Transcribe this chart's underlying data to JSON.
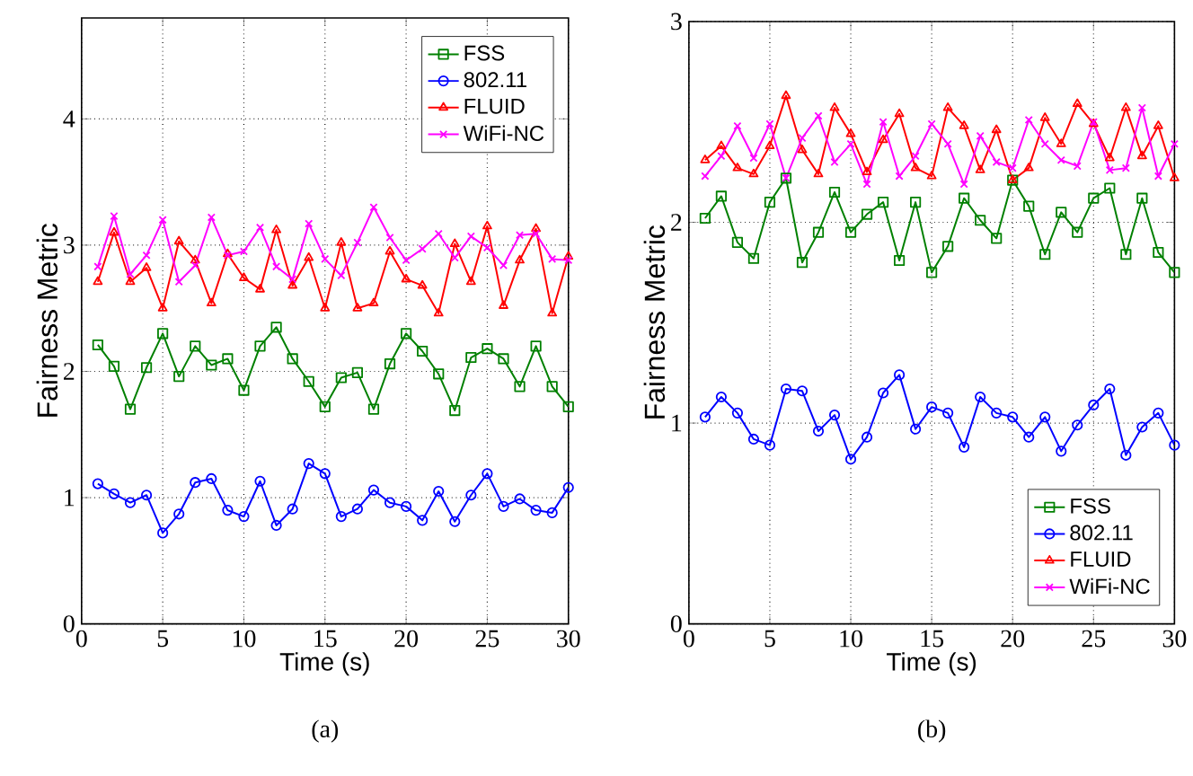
{
  "chart_data": [
    {
      "type": "line",
      "xlabel": "Time (s)",
      "ylabel": "Fairness Metric",
      "annotations": [
        "(a)"
      ],
      "x": [
        1,
        2,
        3,
        4,
        5,
        6,
        7,
        8,
        9,
        10,
        11,
        12,
        13,
        14,
        15,
        16,
        17,
        18,
        19,
        20,
        21,
        22,
        23,
        24,
        25,
        26,
        27,
        28,
        29,
        30
      ],
      "xlim": [
        0,
        30
      ],
      "ylim": [
        0,
        4.8
      ],
      "xticks": [
        0,
        5,
        10,
        15,
        20,
        25,
        30
      ],
      "yticks": [
        0,
        1,
        2,
        3,
        4
      ],
      "grid": true,
      "legend": "top right",
      "series": [
        {
          "name": "FSS",
          "color": "#008000",
          "marker": "square",
          "values": [
            2.21,
            2.04,
            1.7,
            2.03,
            2.3,
            1.96,
            2.2,
            2.05,
            2.1,
            1.85,
            2.2,
            2.35,
            2.1,
            1.92,
            1.72,
            1.95,
            1.99,
            1.7,
            2.06,
            2.3,
            2.16,
            1.98,
            1.69,
            2.11,
            2.18,
            2.1,
            1.88,
            2.2,
            1.88,
            1.72
          ]
        },
        {
          "name": "802.11",
          "color": "#0000ff",
          "marker": "circle",
          "values": [
            1.11,
            1.03,
            0.96,
            1.02,
            0.72,
            0.87,
            1.12,
            1.15,
            0.9,
            0.85,
            1.13,
            0.78,
            0.91,
            1.27,
            1.19,
            0.85,
            0.91,
            1.06,
            0.96,
            0.93,
            0.82,
            1.05,
            0.81,
            1.02,
            1.19,
            0.93,
            0.99,
            0.9,
            0.88,
            1.08
          ]
        },
        {
          "name": "FLUID",
          "color": "#ff0000",
          "marker": "triangle",
          "values": [
            2.71,
            3.1,
            2.71,
            2.82,
            2.5,
            3.03,
            2.88,
            2.54,
            2.93,
            2.74,
            2.65,
            3.12,
            2.68,
            2.9,
            2.5,
            3.02,
            2.5,
            2.54,
            2.95,
            2.73,
            2.68,
            2.46,
            3.01,
            2.71,
            3.15,
            2.52,
            2.88,
            3.13,
            2.46,
            2.91
          ]
        },
        {
          "name": "WiFi-NC",
          "color": "#ff00ff",
          "marker": "cross",
          "values": [
            2.83,
            3.23,
            2.77,
            2.92,
            3.2,
            2.71,
            2.84,
            3.22,
            2.92,
            2.95,
            3.14,
            2.83,
            2.73,
            3.17,
            2.89,
            2.76,
            3.02,
            3.3,
            3.06,
            2.88,
            2.97,
            3.09,
            2.9,
            3.07,
            2.98,
            2.84,
            3.08,
            3.09,
            2.89,
            2.88
          ]
        }
      ]
    },
    {
      "type": "line",
      "xlabel": "Time (s)",
      "ylabel": "Fairness Metric",
      "annotations": [
        "(b)"
      ],
      "x": [
        1,
        2,
        3,
        4,
        5,
        6,
        7,
        8,
        9,
        10,
        11,
        12,
        13,
        14,
        15,
        16,
        17,
        18,
        19,
        20,
        21,
        22,
        23,
        24,
        25,
        26,
        27,
        28,
        29,
        30
      ],
      "xlim": [
        0,
        30
      ],
      "ylim": [
        0,
        3
      ],
      "xticks": [
        0,
        5,
        10,
        15,
        20,
        25,
        30
      ],
      "yticks": [
        0,
        1,
        2,
        3
      ],
      "grid": true,
      "legend": "bottom right",
      "series": [
        {
          "name": "FSS",
          "color": "#008000",
          "marker": "square",
          "values": [
            2.02,
            2.13,
            1.9,
            1.82,
            2.1,
            2.22,
            1.8,
            1.95,
            2.15,
            1.95,
            2.04,
            2.1,
            1.81,
            2.1,
            1.75,
            1.88,
            2.12,
            2.01,
            1.92,
            2.21,
            2.08,
            1.84,
            2.05,
            1.95,
            2.12,
            2.17,
            1.84,
            2.12,
            1.85,
            1.75
          ]
        },
        {
          "name": "802.11",
          "color": "#0000ff",
          "marker": "circle",
          "values": [
            1.03,
            1.13,
            1.05,
            0.92,
            0.89,
            1.17,
            1.16,
            0.96,
            1.04,
            0.82,
            0.93,
            1.15,
            1.24,
            0.97,
            1.08,
            1.05,
            0.88,
            1.13,
            1.05,
            1.03,
            0.93,
            1.03,
            0.86,
            0.99,
            1.09,
            1.17,
            0.84,
            0.98,
            1.05,
            0.89
          ]
        },
        {
          "name": "FLUID",
          "color": "#ff0000",
          "marker": "triangle",
          "values": [
            2.31,
            2.38,
            2.27,
            2.24,
            2.38,
            2.63,
            2.36,
            2.24,
            2.57,
            2.44,
            2.25,
            2.41,
            2.54,
            2.27,
            2.23,
            2.57,
            2.48,
            2.26,
            2.46,
            2.21,
            2.27,
            2.52,
            2.39,
            2.59,
            2.49,
            2.32,
            2.57,
            2.33,
            2.48,
            2.22
          ]
        },
        {
          "name": "WiFi-NC",
          "color": "#ff00ff",
          "marker": "cross",
          "values": [
            2.23,
            2.33,
            2.48,
            2.32,
            2.49,
            2.22,
            2.42,
            2.53,
            2.3,
            2.39,
            2.19,
            2.5,
            2.23,
            2.33,
            2.49,
            2.39,
            2.19,
            2.43,
            2.3,
            2.27,
            2.51,
            2.39,
            2.31,
            2.28,
            2.5,
            2.26,
            2.27,
            2.57,
            2.23,
            2.39
          ]
        }
      ]
    }
  ]
}
